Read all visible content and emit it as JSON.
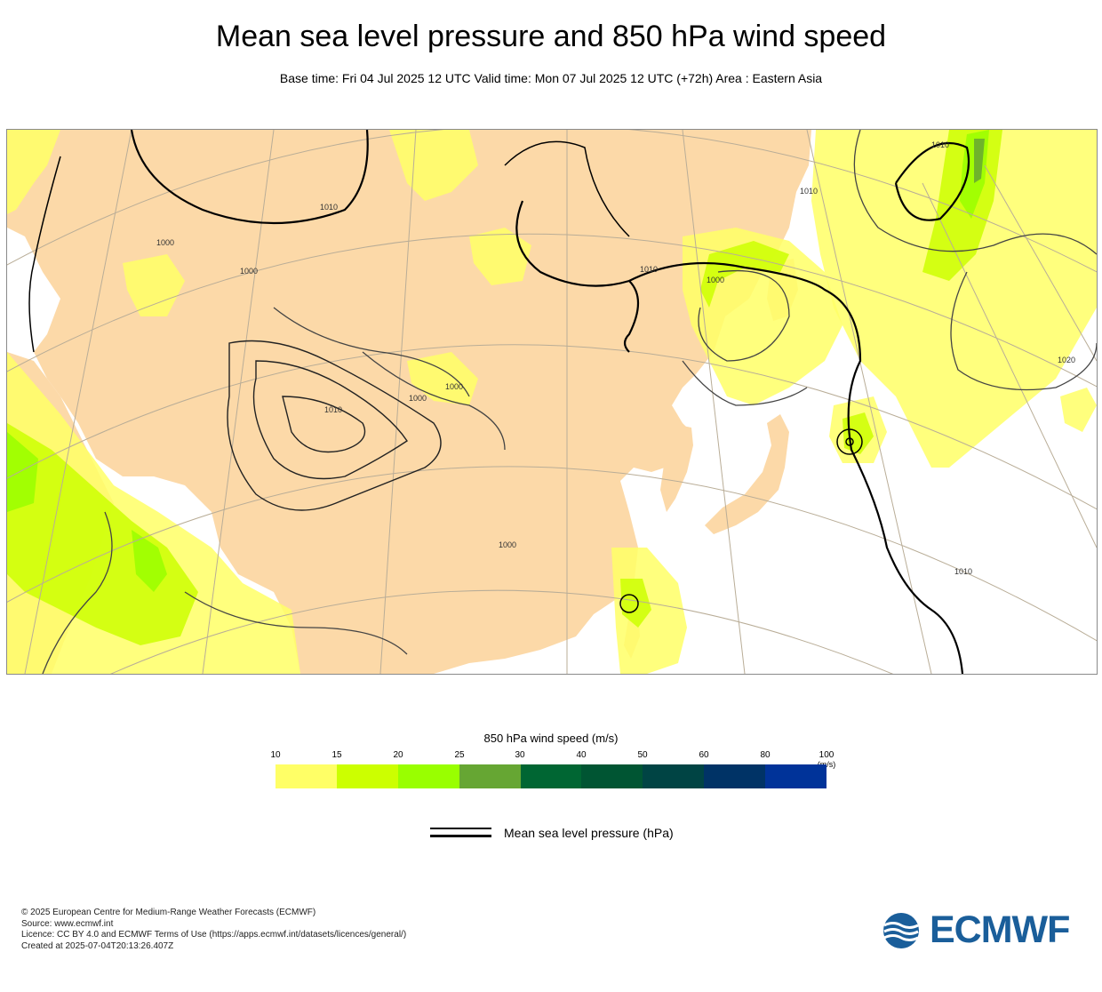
{
  "header": {
    "title": "Mean sea level pressure and 850 hPa wind speed",
    "subtitle": "Base time: Fri 04 Jul 2025 12 UTC Valid time: Mon 07 Jul 2025 12 UTC (+72h) Area : Eastern Asia"
  },
  "map": {
    "isobar_labels": [
      "1010",
      "1000",
      "1000",
      "1010",
      "1000",
      "1000",
      "1010",
      "1000",
      "1010",
      "1020",
      "1010",
      "1010",
      "1000"
    ],
    "colors": {
      "land": "#fcd9a8",
      "sea": "#ffffff",
      "isobar": "#000000",
      "graticule": "#b9ad97"
    }
  },
  "legend": {
    "title": "850 hPa wind speed (m/s)",
    "ticks": [
      "10",
      "15",
      "20",
      "25",
      "30",
      "40",
      "50",
      "60",
      "80",
      "100"
    ],
    "unit": "(m/s)",
    "colors": [
      "#ffff66",
      "#ccff00",
      "#99ff00",
      "#66a633",
      "#006633",
      "#005533",
      "#004444",
      "#003366",
      "#003399"
    ],
    "mslp_label": "Mean sea level pressure (hPa)"
  },
  "footer": {
    "lines": [
      "© 2025 European Centre for Medium-Range Weather Forecasts (ECMWF)",
      "Source: www.ecmwf.int",
      "Licence: CC BY 4.0 and ECMWF Terms of Use (https://apps.ecmwf.int/datasets/licences/general/)",
      "Created at 2025-07-04T20:13:26.407Z"
    ],
    "logo_text": "ECMWF"
  }
}
